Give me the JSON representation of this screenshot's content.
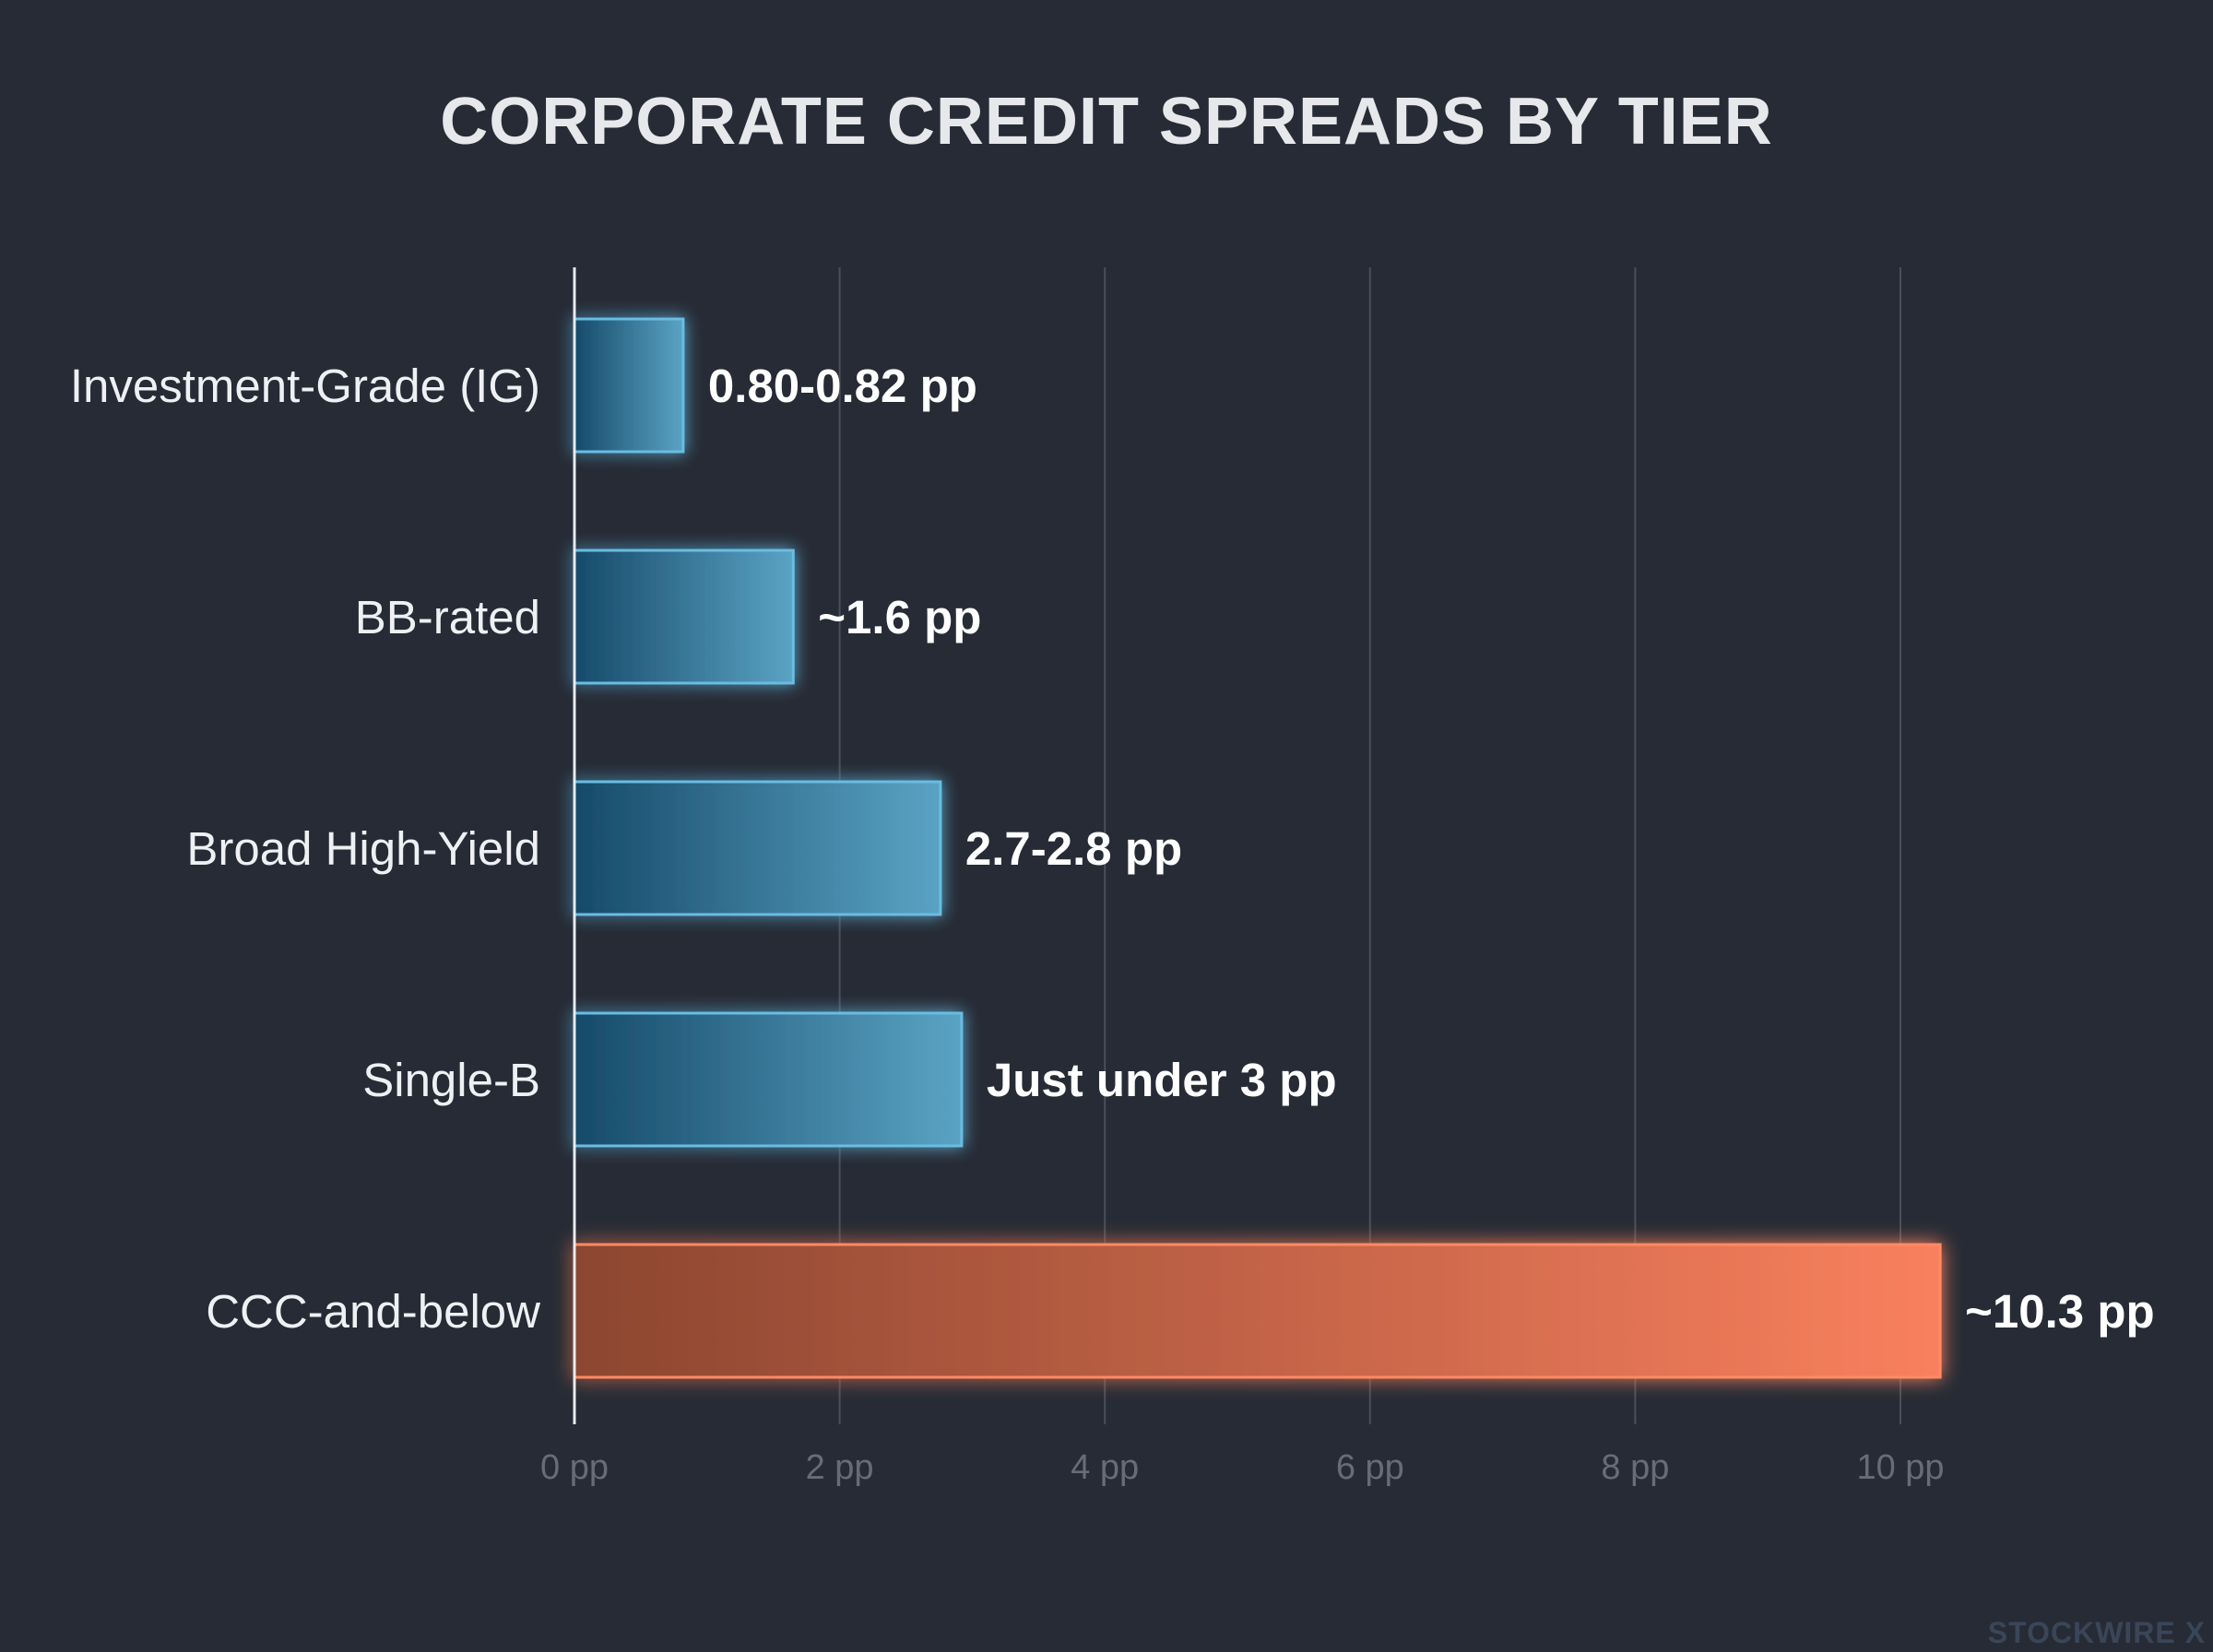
{
  "watermark": "STOCKWIRE X",
  "colors": {
    "background": "#262b35",
    "grid": "#4a4f59",
    "axis": "#e8eaee",
    "blue_bar_dark": "#164a6a",
    "blue_bar_light": "#5aa3c4",
    "blue_bar_edge": "#6bbce3",
    "orange_bar_dark": "#8c4630",
    "orange_bar_light": "#f9805e",
    "orange_bar_edge": "#ff8a63"
  },
  "chart_data": {
    "type": "bar",
    "orientation": "horizontal",
    "title": "CORPORATE CREDIT SPREADS BY TIER",
    "xlabel": "",
    "ylabel": "",
    "xlim": [
      0,
      10
    ],
    "grid": true,
    "categories": [
      "Investment-Grade (IG)",
      "BB-rated",
      "Broad High-Yield",
      "Single-B",
      "CCC-and-below"
    ],
    "values": [
      0.82,
      1.65,
      2.76,
      2.92,
      10.3
    ],
    "data_labels": [
      "0.80-0.82 pp",
      "~1.6 pp",
      "2.7-2.8 pp",
      "Just under 3 pp",
      "~10.3 pp"
    ],
    "highlight": [
      false,
      false,
      false,
      false,
      true
    ],
    "ticks": [
      0,
      2,
      4,
      6,
      8,
      10
    ],
    "tick_labels": [
      "0 pp",
      "2 pp",
      "4 pp",
      "6 pp",
      "8 pp",
      "10 pp"
    ]
  }
}
